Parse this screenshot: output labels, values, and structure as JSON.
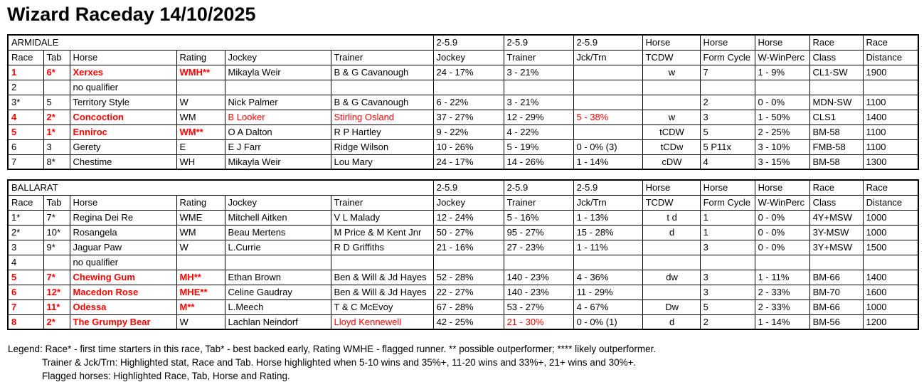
{
  "title": "Wizard Raceday 14/10/2025",
  "colors": {
    "highlight_red": "#ff0000",
    "border": "#000000",
    "background": "#ffffff"
  },
  "header": {
    "group_labels": [
      "2-5.9",
      "2-5.9",
      "2-5.9",
      "Horse",
      "Horse",
      "Horse",
      "Race",
      "Race"
    ],
    "columns": [
      "Race",
      "Tab",
      "Horse",
      "Rating",
      "Jockey",
      "Trainer",
      "Jockey",
      "Trainer",
      "Jck/Trn",
      "TCDW",
      "Form Cycle",
      "W-WinPerc",
      "Class",
      "Distance"
    ]
  },
  "tables": [
    {
      "venue": "ARMIDALE",
      "rows": [
        {
          "cells": [
            "1",
            "6*",
            "Xerxes",
            "WMH**",
            "Mikayla Weir",
            "B & G Cavanough",
            "24 - 17%",
            "3 - 21%",
            "",
            "w",
            "7",
            "1 - 9%",
            "CL1-SW",
            "1900"
          ],
          "red": [
            0,
            1,
            2,
            3
          ]
        },
        {
          "cells": [
            "2",
            "",
            "no qualifier",
            "",
            "",
            "",
            "",
            "",
            "",
            "",
            "",
            "",
            "",
            ""
          ],
          "red": []
        },
        {
          "cells": [
            "3*",
            "5",
            "Territory Style",
            "W",
            "Nick Palmer",
            "B & G Cavanough",
            "6 - 22%",
            "3 - 21%",
            "",
            "",
            "2",
            "0 - 0%",
            "MDN-SW",
            "1100"
          ],
          "red": []
        },
        {
          "cells": [
            "4",
            "2*",
            "Concoction",
            "WM",
            "B Looker",
            "Stirling Osland",
            "37 - 27%",
            "12 - 29%",
            "5 - 38%",
            "w",
            "3",
            "1 - 50%",
            "CLS1",
            "1400"
          ],
          "red": [
            0,
            1,
            2,
            4,
            5,
            8
          ]
        },
        {
          "cells": [
            "5",
            "1*",
            "Enniroc",
            "WM**",
            "O A Dalton",
            "R P Hartley",
            "9 - 22%",
            "4 - 22%",
            "",
            "tCDW",
            "5",
            "2 - 25%",
            "BM-58",
            "1100"
          ],
          "red": [
            0,
            1,
            2,
            3
          ]
        },
        {
          "cells": [
            "6",
            "3",
            "Gerety",
            "E",
            "E J Farr",
            "Ridge Wilson",
            "10 - 26%",
            "5 - 19%",
            "0 - 0% (3)",
            "tCDw",
            "5 P11x",
            "3 - 10%",
            "FMB-58",
            "1100"
          ],
          "red": []
        },
        {
          "cells": [
            "7",
            "8*",
            "Chestime",
            "WH",
            "Mikayla Weir",
            "Lou Mary",
            "24 - 17%",
            "14 - 26%",
            "1 - 14%",
            "cDW",
            "4",
            "3 - 15%",
            "BM-58",
            "1300"
          ],
          "red": []
        }
      ]
    },
    {
      "venue": "BALLARAT",
      "rows": [
        {
          "cells": [
            "1*",
            "7*",
            "Regina Dei Re",
            "WME",
            "Mitchell Aitken",
            "V L Malady",
            "12 - 24%",
            "5 - 16%",
            "1 - 13%",
            "t d",
            "1",
            "0 - 0%",
            "4Y+MSW",
            "1000"
          ],
          "red": []
        },
        {
          "cells": [
            "2*",
            "10*",
            "Rosangela",
            "WM",
            "Beau Mertens",
            "M Price & M Kent Jnr",
            "50 - 27%",
            "95 - 27%",
            "15 - 28%",
            "d",
            "1",
            "0 - 0%",
            "3Y-MSW",
            "1000"
          ],
          "red": []
        },
        {
          "cells": [
            "3",
            "9*",
            "Jaguar Paw",
            "W",
            "L.Currie",
            "R D Griffiths",
            "21 - 16%",
            "27 - 23%",
            "1 - 11%",
            "",
            "3",
            "0 - 0%",
            "3Y+MSW",
            "1500"
          ],
          "red": []
        },
        {
          "cells": [
            "4",
            "",
            "no qualifier",
            "",
            "",
            "",
            "",
            "",
            "",
            "",
            "",
            "",
            "",
            ""
          ],
          "red": []
        },
        {
          "cells": [
            "5",
            "7*",
            "Chewing Gum",
            "MH**",
            "Ethan Brown",
            "Ben & Will & Jd Hayes",
            "52 - 28%",
            "140 - 23%",
            "4 - 36%",
            "dw",
            "3",
            "1 - 11%",
            "BM-66",
            "1400"
          ],
          "red": [
            0,
            1,
            2,
            3
          ]
        },
        {
          "cells": [
            "6",
            "12*",
            "Macedon Rose",
            "MHE**",
            "Celine Gaudray",
            "Ben & Will & Jd Hayes",
            "22 - 27%",
            "140 - 23%",
            "11 - 29%",
            "",
            "3",
            "2 - 33%",
            "BM-70",
            "1600"
          ],
          "red": [
            0,
            1,
            2,
            3
          ]
        },
        {
          "cells": [
            "7",
            "11*",
            "Odessa",
            "M**",
            "L.Meech",
            "T & C McEvoy",
            "67 - 28%",
            "53 - 27%",
            "4 - 67%",
            "Dw",
            "5",
            "2 - 33%",
            "BM-66",
            "1000"
          ],
          "red": [
            0,
            1,
            2,
            3
          ]
        },
        {
          "cells": [
            "8",
            "2*",
            "The Grumpy Bear",
            "W",
            "Lachlan Neindorf",
            "Lloyd Kennewell",
            "42 - 25%",
            "21 - 30%",
            "0 - 0% (1)",
            "d",
            "2",
            "1 - 14%",
            "BM-56",
            "1200"
          ],
          "red": [
            0,
            1,
            2,
            5,
            7
          ]
        }
      ]
    }
  ],
  "legend": {
    "lines": [
      "Legend: Race* - first time starters in this race, Tab* - best backed early, Rating WMHE - flagged runner. ** possible outperformer; **** likely outperformer.",
      "Trainer & Jck/Trn: Highlighted stat, Race and Tab. Horse highlighted when 5-10 wins and 35%+, 11-20 wins and 33%+, 21+ wins and 30%+.",
      "Flagged horses: Highlighted Race, Tab, Horse and Rating."
    ]
  }
}
